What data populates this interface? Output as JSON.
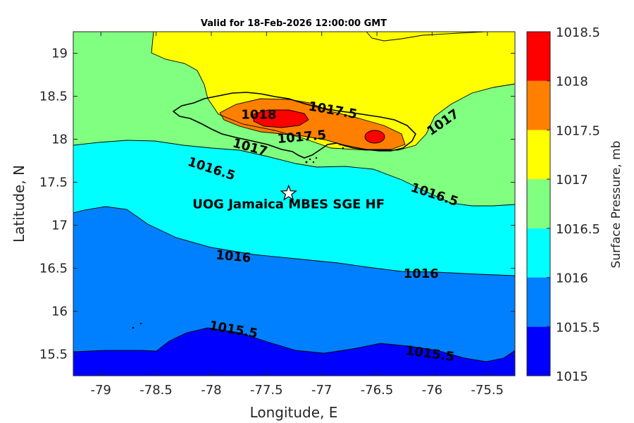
{
  "chart_data": {
    "type": "contour",
    "title": "Valid for 18-Feb-2026 12:00:00 GMT",
    "xlabel": "Longitude, E",
    "ylabel": "Latitude, N",
    "xlim": [
      -79.25,
      -75.25
    ],
    "ylim": [
      15.25,
      19.25
    ],
    "xticks": [
      -79,
      -78.5,
      -78,
      -77.5,
      -77,
      -76.5,
      -76,
      -75.5
    ],
    "xtick_labels": [
      "-79",
      "-78.5",
      "-78",
      "-77.5",
      "-77",
      "-76.5",
      "-76",
      "-75.5"
    ],
    "yticks": [
      15.5,
      16,
      16.5,
      17,
      17.5,
      18,
      18.5,
      19
    ],
    "ytick_labels": [
      "15.5",
      "16",
      "16.5",
      "17",
      "17.5",
      "18",
      "18.5",
      "19"
    ],
    "colorbar": {
      "label": "Surface Pressure, mb",
      "levels": [
        1015,
        1015.5,
        1016,
        1016.5,
        1017,
        1017.5,
        1018,
        1018.5
      ],
      "level_labels": [
        "1015",
        "1015.5",
        "1016",
        "1016.5",
        "1017",
        "1017.5",
        "1018",
        "1018.5"
      ],
      "colors": [
        "#0000ff",
        "#0080ff",
        "#00ffff",
        "#80ff80",
        "#ffff00",
        "#ff8000",
        "#ff0000",
        "#800000"
      ]
    },
    "contour_labels": [
      {
        "text": "1018",
        "lon": -77.57,
        "lat": 18.28,
        "angle": 0
      },
      {
        "text": "1017.5",
        "lon": -76.9,
        "lat": 18.33,
        "angle": 10
      },
      {
        "text": "1017.5",
        "lon": -77.18,
        "lat": 18.02,
        "angle": -5
      },
      {
        "text": "1017",
        "lon": -77.65,
        "lat": 17.9,
        "angle": 15
      },
      {
        "text": "1017",
        "lon": -75.9,
        "lat": 18.19,
        "angle": -35
      },
      {
        "text": "1016.5",
        "lon": -78.0,
        "lat": 17.65,
        "angle": 18
      },
      {
        "text": "1016.5",
        "lon": -75.98,
        "lat": 17.35,
        "angle": 18
      },
      {
        "text": "1016",
        "lon": -77.8,
        "lat": 16.63,
        "angle": 5
      },
      {
        "text": "1016",
        "lon": -76.1,
        "lat": 16.43,
        "angle": 0
      },
      {
        "text": "1015.5",
        "lon": -77.8,
        "lat": 15.78,
        "angle": 10
      },
      {
        "text": "1015.5",
        "lon": -76.02,
        "lat": 15.5,
        "angle": 8
      }
    ],
    "station": {
      "name": "UOG Jamaica MBES SGE HF",
      "lon": -77.3,
      "lat": 17.37
    },
    "coastline": "Jamaica"
  }
}
